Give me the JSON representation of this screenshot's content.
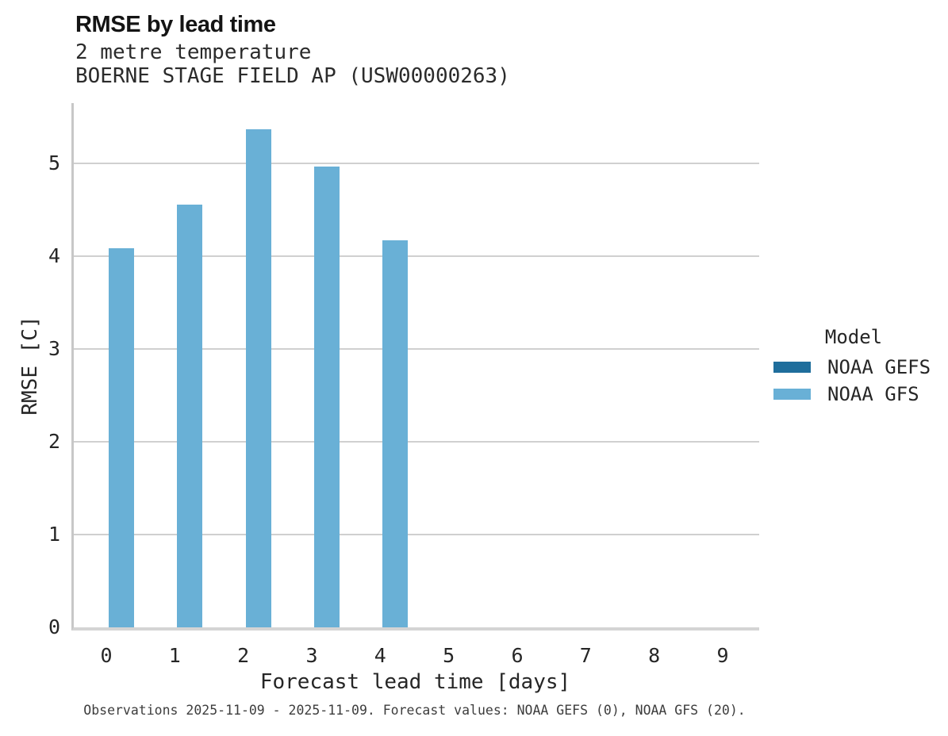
{
  "chart_data": {
    "type": "bar",
    "title": "RMSE by lead time",
    "subtitle": [
      "2 metre temperature",
      "BOERNE STAGE FIELD AP (USW00000263)"
    ],
    "xlabel": "Forecast lead time [days]",
    "ylabel": "RMSE [C]",
    "categories": [
      "0",
      "1",
      "2",
      "3",
      "4",
      "5",
      "6",
      "7",
      "8",
      "9"
    ],
    "yticks": [
      0,
      1,
      2,
      3,
      4,
      5
    ],
    "ylim": [
      0,
      5.65
    ],
    "grid": "horizontal",
    "legend": {
      "title": "Model",
      "position": "right"
    },
    "series": [
      {
        "name": "NOAA GEFS",
        "color": "#1f6e9c",
        "values": [
          null,
          null,
          null,
          null,
          null,
          null,
          null,
          null,
          null,
          null
        ]
      },
      {
        "name": "NOAA GFS",
        "color": "#69b0d6",
        "values": [
          4.09,
          4.56,
          5.37,
          4.97,
          4.17,
          null,
          null,
          null,
          null,
          null
        ]
      }
    ],
    "caption": "Observations 2025-11-09 - 2025-11-09. Forecast values: NOAA GEFS (0), NOAA GFS (20)."
  }
}
